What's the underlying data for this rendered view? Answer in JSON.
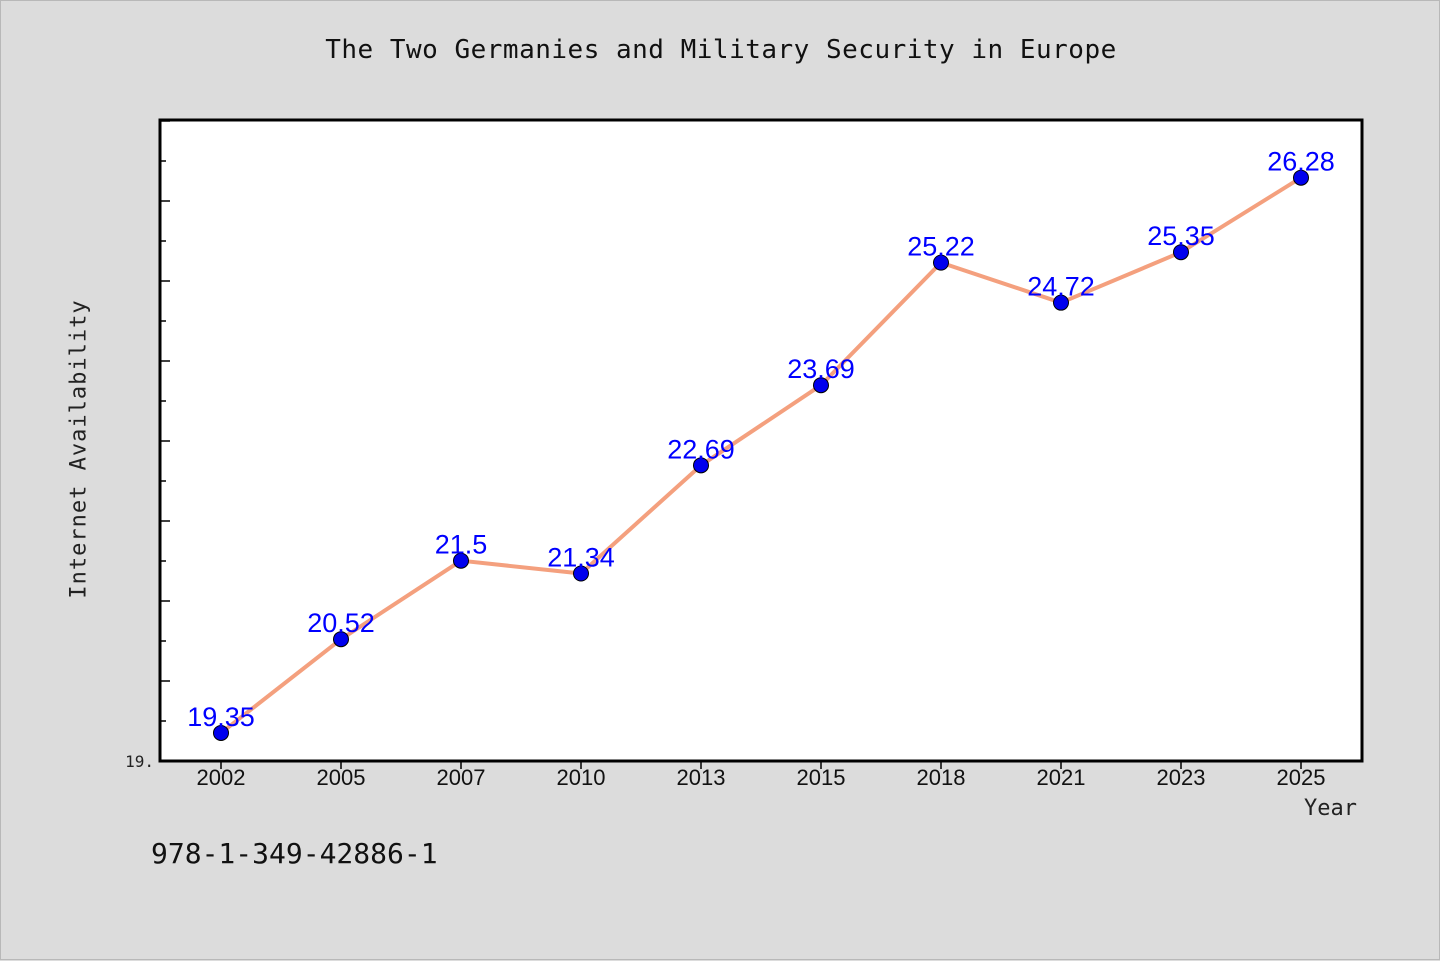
{
  "chart_data": {
    "type": "line",
    "title": "The Two Germanies and Military Security in Europe",
    "xlabel": "Year",
    "ylabel": "Internet Availability",
    "categories": [
      "2002",
      "2005",
      "2007",
      "2010",
      "2013",
      "2015",
      "2018",
      "2021",
      "2023",
      "2025"
    ],
    "series": [
      {
        "values": [
          19.35,
          20.52,
          21.5,
          21.34,
          22.69,
          23.69,
          25.22,
          24.72,
          25.35,
          26.28
        ],
        "data_labels": [
          "19.35",
          "20.52",
          "21.5",
          "21.34",
          "22.69",
          "23.69",
          "25.22",
          "24.72",
          "25.35",
          "26.28"
        ]
      }
    ],
    "ylim": [
      19,
      27
    ],
    "y_tick_labels": [
      "19."
    ],
    "grid": false,
    "colors": {
      "line": "#f4a07e",
      "marker": "#0000ee",
      "data_label": "#0000ff",
      "plot_bg": "#ffffff",
      "figure_bg": "#dcdcdc"
    }
  },
  "footnote": "978-1-349-42886-1"
}
